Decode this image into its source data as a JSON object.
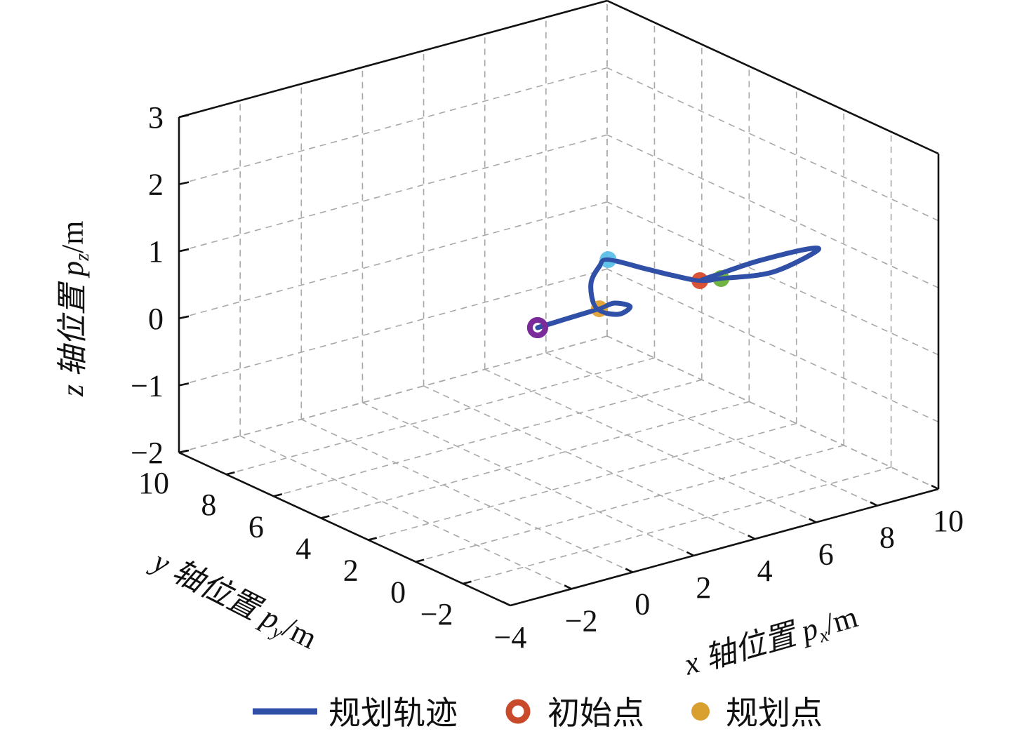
{
  "chart_data": {
    "type": "line3d",
    "title": "",
    "axes": {
      "x": {
        "label": "x 轴位置 ",
        "sym": "p",
        "sub": "x",
        "unit": "/m",
        "lim": [
          -4,
          10
        ],
        "ticks": [
          -4,
          -2,
          0,
          2,
          4,
          6,
          8,
          10
        ]
      },
      "y": {
        "label": "y 轴位置 ",
        "sym": "p",
        "sub": "y",
        "unit": "/m",
        "lim": [
          -4,
          10
        ],
        "ticks": [
          -2,
          0,
          2,
          4,
          6,
          8,
          10
        ]
      },
      "z": {
        "label": "z 轴位置 ",
        "sym": "p",
        "sub": "z",
        "unit": "/m",
        "lim": [
          -2,
          3
        ],
        "ticks": [
          -2,
          -1,
          0,
          1,
          2,
          3
        ]
      }
    },
    "grid": true,
    "trajectory": {
      "name": "规划轨迹",
      "color": "#3050a8",
      "points": [
        [
          2.07,
          2.69,
          0.3
        ],
        [
          3.1,
          2.75,
          0.3
        ],
        [
          4.18,
          2.81,
          0.3
        ],
        [
          4.74,
          2.9,
          0.3
        ],
        [
          4.91,
          2.45,
          0.3
        ],
        [
          4.31,
          2.2,
          0.3
        ],
        [
          4.0,
          2.7,
          0.35
        ],
        [
          4.06,
          3.01,
          0.65
        ],
        [
          4.3,
          2.95,
          0.9
        ],
        [
          4.46,
          2.8,
          1.0
        ],
        [
          4.82,
          1.69,
          1.0
        ],
        [
          5.1,
          0.84,
          1.0
        ],
        [
          5.41,
          0.15,
          1.0
        ],
        [
          5.94,
          -0.06,
          1.0
        ],
        [
          7.27,
          -0.5,
          1.0
        ],
        [
          9.12,
          0.02,
          1.0
        ],
        [
          9.02,
          0.29,
          1.0
        ],
        [
          7.48,
          0.37,
          1.0
        ],
        [
          5.99,
          0.22,
          1.0
        ],
        [
          5.5,
          0.18,
          1.0
        ]
      ]
    },
    "markers": [
      {
        "kind": "initial",
        "point": [
          2.07,
          2.69,
          0.3
        ],
        "color": "#7b2a9a",
        "hollow": true
      },
      {
        "kind": "planned",
        "point": [
          4.18,
          2.81,
          0.3
        ],
        "color": "#e0a030",
        "hollow": false
      },
      {
        "kind": "planned",
        "point": [
          4.46,
          2.8,
          1.0
        ],
        "color": "#5bc0e8",
        "hollow": false
      },
      {
        "kind": "planned",
        "point": [
          5.41,
          0.15,
          1.0
        ],
        "color": "#d84a2a",
        "hollow": false
      },
      {
        "kind": "planned",
        "point": [
          5.94,
          -0.06,
          1.0
        ],
        "color": "#6ab03a",
        "hollow": false
      }
    ],
    "legend": {
      "placement": "bottom",
      "items": [
        {
          "label": "规划轨迹",
          "type": "line",
          "color": "#3050a8"
        },
        {
          "label": "初始点",
          "type": "hollow-circle",
          "color": "#c84a2a"
        },
        {
          "label": "规划点",
          "type": "dot",
          "color": "#d9a030"
        }
      ]
    }
  }
}
